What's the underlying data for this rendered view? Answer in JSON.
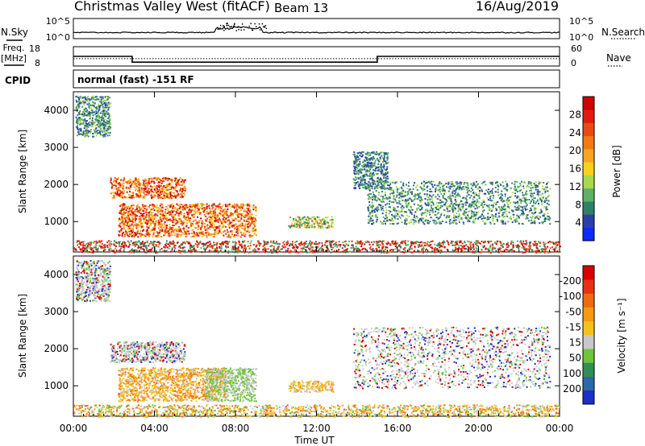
{
  "header": {
    "station": "Christmas Valley West (fitACF)",
    "beam": "Beam 13",
    "date": "16/Aug/2019"
  },
  "panels_top": {
    "nsky_label": "N.Sky",
    "nsky_tick_hi": "10^5",
    "nsky_tick_lo": "10^0",
    "nsearch_label": "N.Search",
    "freq_label_1": "Freq.",
    "freq_label_2": "[MHz]",
    "freq_tick_hi": "18",
    "freq_tick_lo": "8",
    "nave_tick_hi": "60",
    "nave_tick_lo": "0",
    "nave_label": "Nave",
    "cpid_label": "CPID",
    "cpid_text": "normal (fast) -151 RF"
  },
  "chart_data": [
    {
      "type": "heatmap",
      "name": "power",
      "xlabel": "Time UT",
      "ylabel": "Slant Range [km]",
      "xlim": [
        0,
        24
      ],
      "ylim": [
        180,
        4500
      ],
      "y_ticks": [
        1000,
        2000,
        3000,
        4000
      ],
      "x_ticks": [
        "00:00",
        "04:00",
        "08:00",
        "12:00",
        "16:00",
        "20:00",
        "00:00"
      ],
      "colorbar_label": "Power [dB]",
      "colorbar_ticks": [
        "4",
        "8",
        "12",
        "16",
        "20",
        "24",
        "28"
      ],
      "colorbar_colors": [
        "#0b2bff",
        "#2c3fa8",
        "#2f7f6a",
        "#5eb068",
        "#a9d94b",
        "#f6d21a",
        "#f5a623",
        "#f27a12",
        "#ea4a12",
        "#e11b12",
        "#d00000"
      ],
      "scatter_regions": [
        {
          "t0": 0.1,
          "t1": 1.8,
          "r0": 3300,
          "r1": 4400,
          "level": "mixed-low"
        },
        {
          "t0": 1.8,
          "t1": 5.5,
          "r0": 1650,
          "r1": 2200,
          "level": "high"
        },
        {
          "t0": 2.2,
          "t1": 9.0,
          "r0": 600,
          "r1": 1500,
          "level": "high"
        },
        {
          "t0": 10.6,
          "t1": 12.8,
          "r0": 850,
          "r1": 1150,
          "level": "mixed"
        },
        {
          "t0": 13.8,
          "t1": 15.5,
          "r0": 1900,
          "r1": 2900,
          "level": "low"
        },
        {
          "t0": 14.5,
          "t1": 23.5,
          "r0": 950,
          "r1": 2100,
          "level": "mixed-low"
        },
        {
          "t0": 0,
          "t1": 24,
          "r0": 180,
          "r1": 500,
          "level": "high-ground"
        }
      ]
    },
    {
      "type": "heatmap",
      "name": "velocity",
      "xlabel": "Time UT",
      "ylabel": "Slant Range [km]",
      "xlim": [
        0,
        24
      ],
      "ylim": [
        180,
        4500
      ],
      "y_ticks": [
        1000,
        2000,
        3000,
        4000
      ],
      "x_ticks": [
        "00:00",
        "04:00",
        "08:00",
        "12:00",
        "16:00",
        "20:00",
        "00:00"
      ],
      "colorbar_label": "Velocity [m s⁻¹]",
      "colorbar_ticks": [
        "200",
        "100",
        "50",
        "15",
        "-15",
        "-50",
        "-100",
        "-200"
      ],
      "colorbar_colors": [
        "#1c2fc8",
        "#2b68a8",
        "#2f8f55",
        "#6cc53a",
        "#c8c8c8",
        "#f5c218",
        "#f59a12",
        "#f06a0d",
        "#e63210",
        "#d80000"
      ],
      "scatter_regions": [
        {
          "t0": 0.1,
          "t1": 1.8,
          "r0": 3300,
          "r1": 4400,
          "level": "grey"
        },
        {
          "t0": 1.8,
          "t1": 5.5,
          "r0": 1650,
          "r1": 2200,
          "level": "grey"
        },
        {
          "t0": 2.2,
          "t1": 7.5,
          "r0": 600,
          "r1": 1500,
          "level": "orange"
        },
        {
          "t0": 6.5,
          "t1": 9.0,
          "r0": 600,
          "r1": 1500,
          "level": "grey-green"
        },
        {
          "t0": 10.6,
          "t1": 12.8,
          "r0": 850,
          "r1": 1150,
          "level": "orange-grey"
        },
        {
          "t0": 13.8,
          "t1": 23.5,
          "r0": 950,
          "r1": 2600,
          "level": "grey"
        },
        {
          "t0": 0,
          "t1": 24,
          "r0": 180,
          "r1": 500,
          "level": "ground-orange"
        }
      ]
    }
  ]
}
